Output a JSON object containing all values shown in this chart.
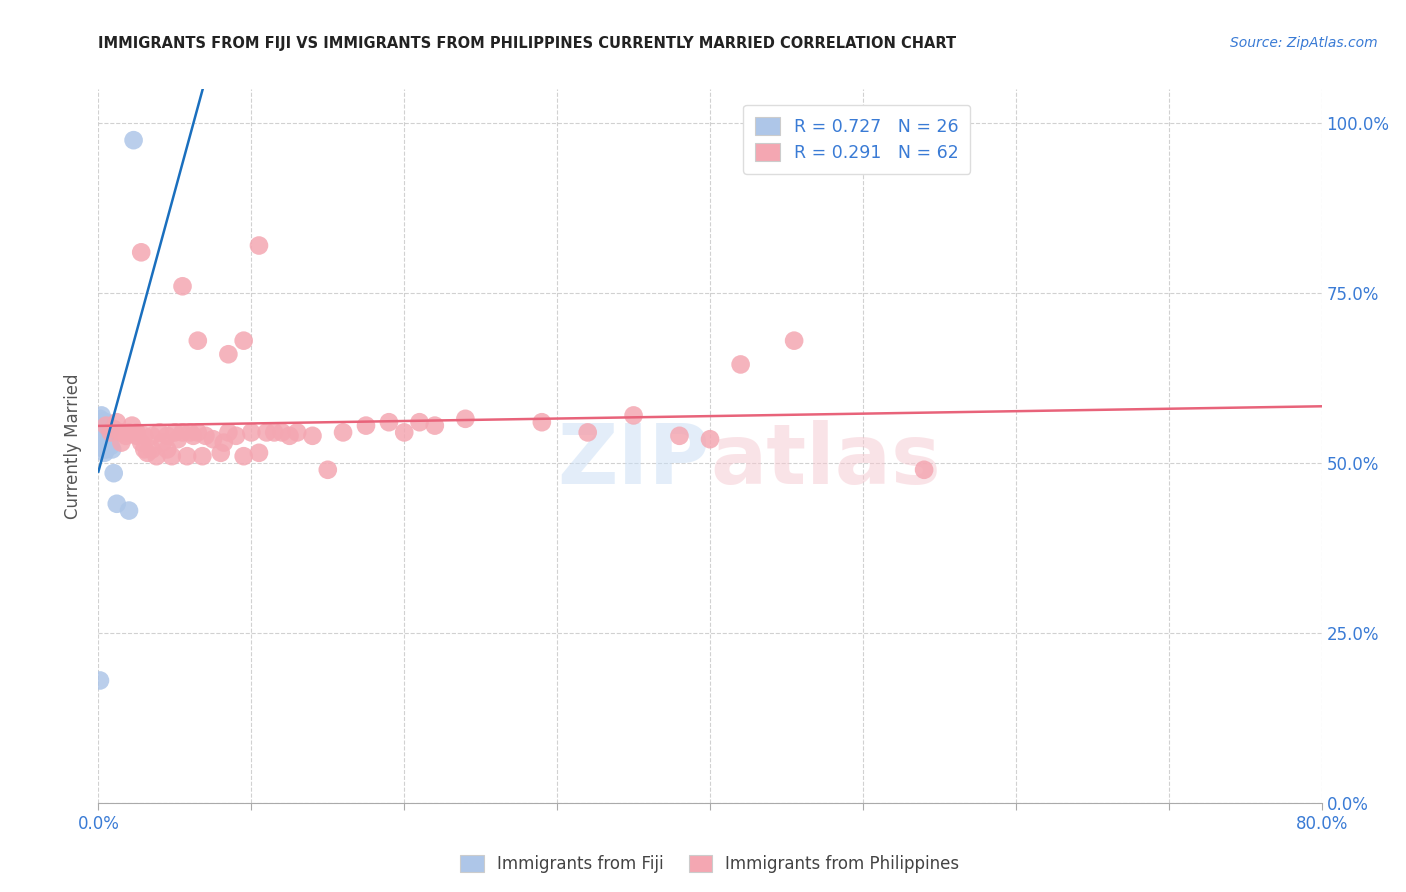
{
  "title": "IMMIGRANTS FROM FIJI VS IMMIGRANTS FROM PHILIPPINES CURRENTLY MARRIED CORRELATION CHART",
  "source": "Source: ZipAtlas.com",
  "ylabel": "Currently Married",
  "xlim": [
    0.0,
    0.8
  ],
  "ylim": [
    0.0,
    1.05
  ],
  "fiji_color": "#aec6e8",
  "fiji_line_color": "#1a6fbe",
  "phil_color": "#f4a7b2",
  "phil_line_color": "#e8637a",
  "watermark": "ZIPatlas",
  "fiji_x": [
    0.001,
    0.001,
    0.001,
    0.002,
    0.002,
    0.002,
    0.002,
    0.003,
    0.003,
    0.003,
    0.003,
    0.004,
    0.004,
    0.004,
    0.005,
    0.005,
    0.006,
    0.006,
    0.007,
    0.007,
    0.008,
    0.009,
    0.01,
    0.012,
    0.02,
    0.023,
    0.001
  ],
  "fiji_y": [
    0.565,
    0.555,
    0.545,
    0.57,
    0.555,
    0.54,
    0.535,
    0.56,
    0.555,
    0.545,
    0.54,
    0.53,
    0.52,
    0.515,
    0.56,
    0.52,
    0.55,
    0.54,
    0.545,
    0.53,
    0.525,
    0.52,
    0.485,
    0.44,
    0.43,
    0.975,
    0.18
  ],
  "phil_x": [
    0.005,
    0.008,
    0.01,
    0.012,
    0.015,
    0.015,
    0.018,
    0.02,
    0.022,
    0.025,
    0.025,
    0.028,
    0.03,
    0.03,
    0.032,
    0.035,
    0.035,
    0.038,
    0.04,
    0.042,
    0.045,
    0.045,
    0.048,
    0.05,
    0.052,
    0.055,
    0.058,
    0.06,
    0.062,
    0.065,
    0.068,
    0.07,
    0.075,
    0.08,
    0.082,
    0.085,
    0.09,
    0.095,
    0.1,
    0.105,
    0.11,
    0.115,
    0.12,
    0.125,
    0.13,
    0.14,
    0.15,
    0.16,
    0.175,
    0.19,
    0.2,
    0.21,
    0.22,
    0.24,
    0.29,
    0.32,
    0.35,
    0.38,
    0.4,
    0.42,
    0.455,
    0.54
  ],
  "phil_y": [
    0.555,
    0.545,
    0.55,
    0.56,
    0.545,
    0.53,
    0.54,
    0.545,
    0.555,
    0.545,
    0.54,
    0.53,
    0.54,
    0.52,
    0.515,
    0.54,
    0.52,
    0.51,
    0.545,
    0.53,
    0.54,
    0.52,
    0.51,
    0.545,
    0.535,
    0.545,
    0.51,
    0.545,
    0.54,
    0.545,
    0.51,
    0.54,
    0.535,
    0.515,
    0.53,
    0.545,
    0.54,
    0.51,
    0.545,
    0.515,
    0.545,
    0.545,
    0.545,
    0.54,
    0.545,
    0.54,
    0.49,
    0.545,
    0.555,
    0.56,
    0.545,
    0.56,
    0.555,
    0.565,
    0.56,
    0.545,
    0.57,
    0.54,
    0.535,
    0.645,
    0.68,
    0.49
  ],
  "phil_high_x": [
    0.028,
    0.055,
    0.065,
    0.085,
    0.095,
    0.105
  ],
  "phil_high_y": [
    0.81,
    0.76,
    0.68,
    0.66,
    0.68,
    0.82
  ]
}
